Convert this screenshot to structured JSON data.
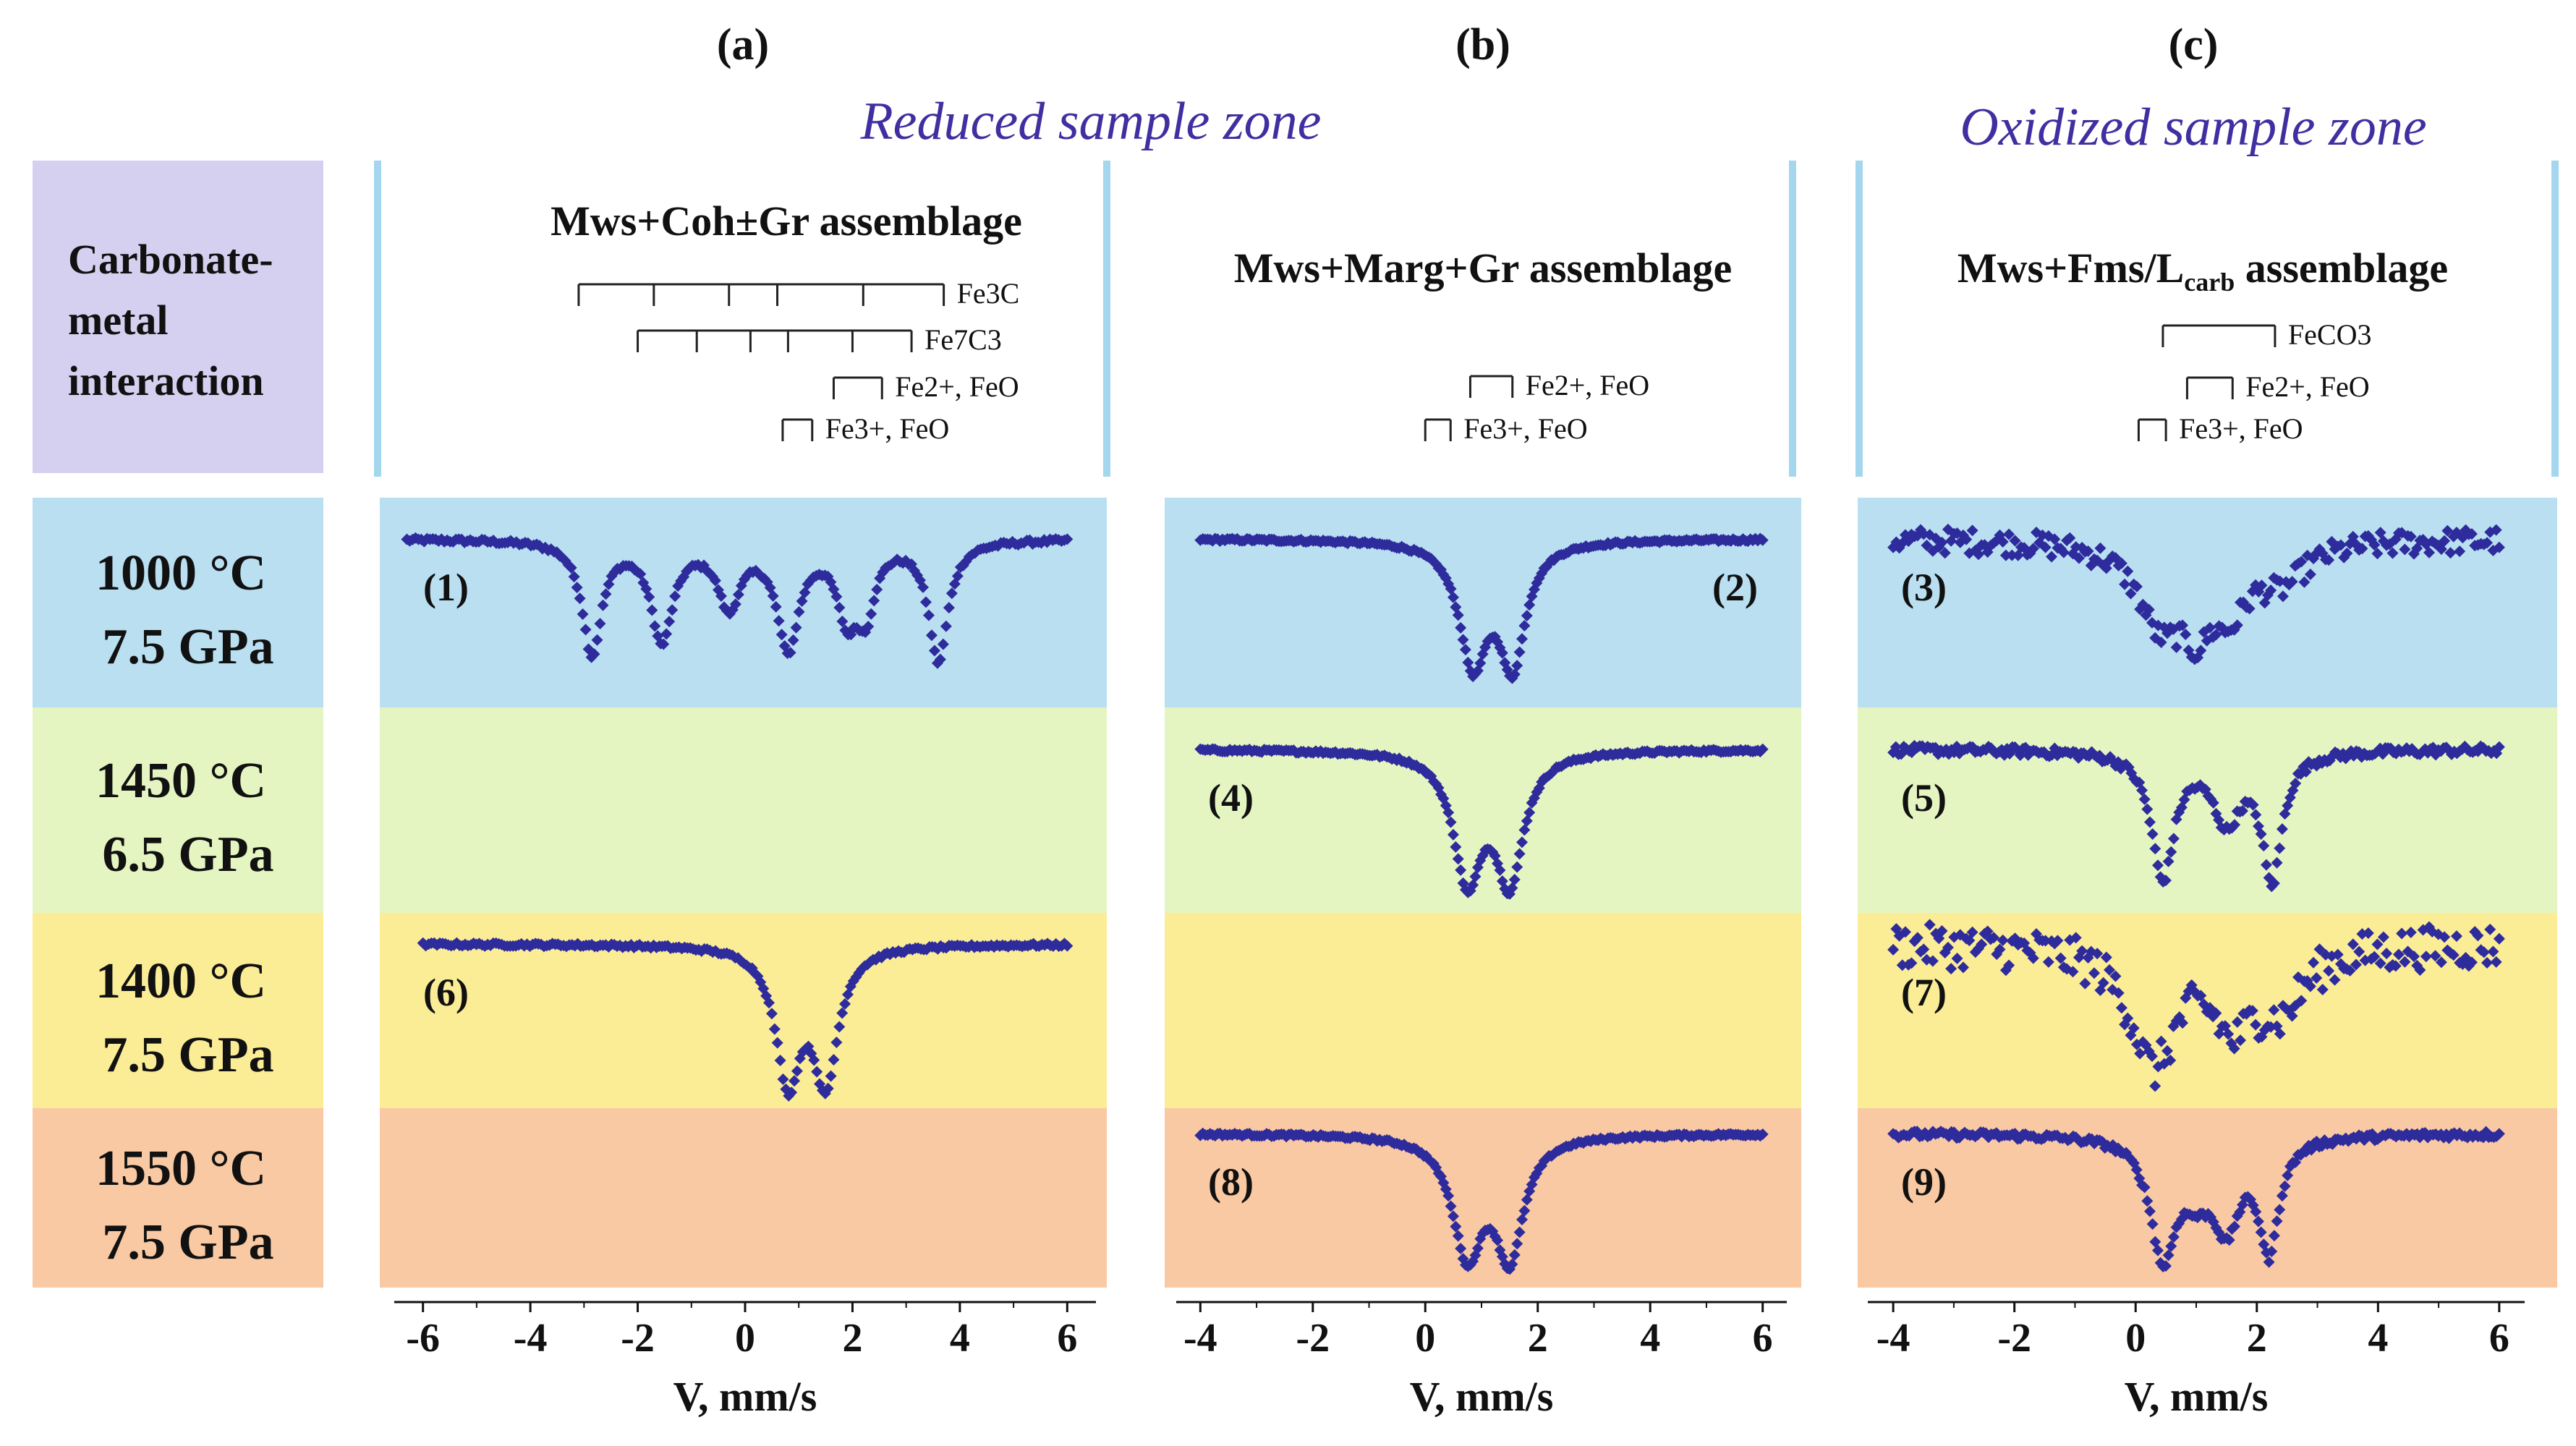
{
  "chart_data": {
    "type": "scatter",
    "title": "",
    "panels": [
      {
        "id": "a",
        "letter": "(a)",
        "zone": "Reduced sample zone",
        "assemblage": "Mws+Coh±Gr assemblage",
        "xlabel": "V, mm/s",
        "xlim": [
          -6.4,
          6.4
        ],
        "xticks": [
          -6,
          -4,
          -2,
          0,
          2,
          4,
          6
        ],
        "xtick_labels": [
          "-6",
          "-4",
          "-2",
          "0",
          "2",
          "4",
          "6"
        ]
      },
      {
        "id": "b",
        "letter": "(b)",
        "zone": "Reduced sample zone",
        "assemblage": "Mws+Marg+Gr assemblage",
        "xlabel": "V, mm/s",
        "xlim": [
          -4.3,
          6.3
        ],
        "xticks": [
          -4,
          -2,
          0,
          2,
          4,
          6
        ],
        "xtick_labels": [
          "-4",
          "-2",
          "0",
          "2",
          "4",
          "6"
        ]
      },
      {
        "id": "c",
        "letter": "(c)",
        "zone": "Oxidized sample zone",
        "assemblage": "Mws+Fms/Lcarb assemblage",
        "xlabel": "V, mm/s",
        "xlim": [
          -4.3,
          6.3
        ],
        "xticks": [
          -4,
          -2,
          0,
          2,
          4,
          6
        ],
        "xtick_labels": [
          "-4",
          "-2",
          "0",
          "2",
          "4",
          "6"
        ]
      }
    ],
    "row_header": "Carbonate-metal interaction",
    "rows": [
      {
        "temp": "1000 °C",
        "pressure": "7.5 GPa",
        "color": "#b9dff1"
      },
      {
        "temp": "1450 °C",
        "pressure": "6.5 GPa",
        "color": "#e5f5c1"
      },
      {
        "temp": "1400 °C",
        "pressure": "7.5 GPa",
        "color": "#fbec96"
      },
      {
        "temp": "1550 °C",
        "pressure": "7.5 GPa",
        "color": "#f9c9a3"
      }
    ],
    "stick_diagrams": [
      {
        "panel": 0,
        "phase": "Fe3C",
        "lines": [
          -3.1,
          -1.7,
          -0.3,
          0.6,
          2.2,
          3.7
        ]
      },
      {
        "panel": 0,
        "phase": "Fe7C3",
        "lines": [
          -2.0,
          -0.9,
          0.1,
          0.8,
          2.0,
          3.1
        ]
      },
      {
        "panel": 0,
        "phase": "Fe2+, FeO",
        "lines": [
          1.65,
          2.55
        ]
      },
      {
        "panel": 0,
        "phase": "Fe3+, FeO",
        "lines": [
          0.7,
          1.25
        ]
      },
      {
        "panel": 1,
        "phase": "Fe2+, FeO",
        "lines": [
          0.8,
          1.55
        ]
      },
      {
        "panel": 1,
        "phase": "Fe3+, FeO",
        "lines": [
          0.0,
          0.45
        ]
      },
      {
        "panel": 2,
        "phase": "FeCO3",
        "lines": [
          0.45,
          2.3
        ]
      },
      {
        "panel": 2,
        "phase": "Fe2+, FeO",
        "lines": [
          0.85,
          1.6
        ]
      },
      {
        "panel": 2,
        "phase": "Fe3+, FeO",
        "lines": [
          0.05,
          0.5
        ]
      }
    ],
    "spectra": [
      {
        "label": "(1)",
        "panel": 0,
        "row": 0,
        "xrange": [
          -6.3,
          6.0
        ],
        "noise": 0.015,
        "peaks": [
          [
            -2.85,
            0.8,
            0.22
          ],
          [
            -1.55,
            0.7,
            0.25
          ],
          [
            -0.3,
            0.45,
            0.25
          ],
          [
            0.8,
            0.75,
            0.25
          ],
          [
            1.9,
            0.5,
            0.23
          ],
          [
            2.25,
            0.45,
            0.2
          ],
          [
            3.6,
            0.85,
            0.22
          ]
        ]
      },
      {
        "label": "(2)",
        "panel": 1,
        "row": 0,
        "xrange": [
          -4.0,
          6.0
        ],
        "noise": 0.01,
        "peaks": [
          [
            0.85,
            0.85,
            0.3
          ],
          [
            1.55,
            0.85,
            0.28
          ]
        ]
      },
      {
        "label": "(3)",
        "panel": 2,
        "row": 0,
        "xrange": [
          -4.0,
          6.0
        ],
        "noise": 0.09,
        "peaks": [
          [
            0.4,
            0.55,
            0.45
          ],
          [
            1.0,
            0.45,
            0.3
          ],
          [
            1.55,
            0.4,
            0.35
          ],
          [
            2.4,
            0.25,
            0.5
          ]
        ]
      },
      {
        "label": "(4)",
        "panel": 1,
        "row": 1,
        "xrange": [
          -4.0,
          6.0
        ],
        "noise": 0.01,
        "peaks": [
          [
            0.75,
            0.85,
            0.3
          ],
          [
            1.5,
            0.85,
            0.3
          ]
        ]
      },
      {
        "label": "(5)",
        "panel": 2,
        "row": 1,
        "xrange": [
          -4.0,
          6.0
        ],
        "noise": 0.03,
        "peaks": [
          [
            0.45,
            0.85,
            0.23
          ],
          [
            1.5,
            0.45,
            0.28
          ],
          [
            2.25,
            0.85,
            0.2
          ]
        ]
      },
      {
        "label": "(6)",
        "panel": 0,
        "row": 2,
        "xrange": [
          -6.0,
          6.0
        ],
        "noise": 0.01,
        "peaks": [
          [
            0.8,
            0.85,
            0.28
          ],
          [
            1.5,
            0.85,
            0.28
          ]
        ]
      },
      {
        "label": "(7)",
        "panel": 2,
        "row": 2,
        "xrange": [
          -4.0,
          6.0
        ],
        "noise": 0.14,
        "peaks": [
          [
            0.3,
            0.75,
            0.45
          ],
          [
            1.6,
            0.45,
            0.4
          ],
          [
            2.4,
            0.35,
            0.45
          ]
        ]
      },
      {
        "label": "(8)",
        "panel": 1,
        "row": 3,
        "xrange": [
          -4.0,
          6.0
        ],
        "noise": 0.01,
        "peaks": [
          [
            0.75,
            0.85,
            0.32
          ],
          [
            1.5,
            0.85,
            0.3
          ]
        ]
      },
      {
        "label": "(9)",
        "panel": 2,
        "row": 3,
        "xrange": [
          -4.0,
          6.0
        ],
        "noise": 0.025,
        "peaks": [
          [
            0.45,
            0.85,
            0.25
          ],
          [
            1.0,
            0.3,
            0.3
          ],
          [
            1.5,
            0.6,
            0.27
          ],
          [
            2.2,
            0.8,
            0.2
          ]
        ]
      }
    ],
    "colors": {
      "marker": "#2e2b9c",
      "zone_title": "#3f2fa0",
      "header_bg": "#d5d0f0",
      "side_bar": "#a4d6ee"
    }
  }
}
